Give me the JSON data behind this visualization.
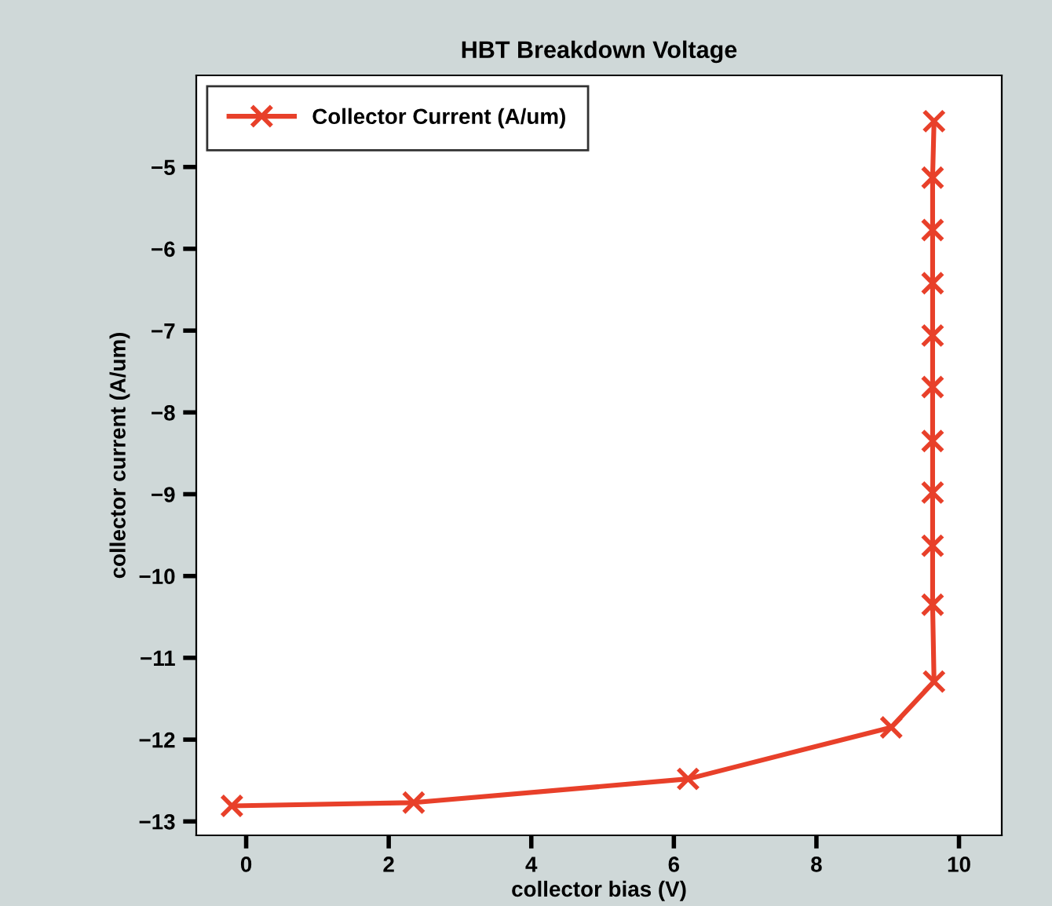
{
  "chart_data": {
    "type": "line",
    "title": "HBT Breakdown Voltage",
    "xlabel": "collector bias (V)",
    "ylabel": "collector current (A/um)",
    "x": [
      -0.2,
      2.35,
      6.2,
      9.05,
      9.65,
      9.63,
      9.63,
      9.63,
      9.63,
      9.63,
      9.63,
      9.63,
      9.63,
      9.63,
      9.65
    ],
    "series": [
      {
        "name": "Collector Current (A/um)",
        "color": "#e8402a",
        "values": [
          -12.81,
          -12.77,
          -12.48,
          -11.85,
          -11.29,
          -10.35,
          -9.63,
          -8.98,
          -8.35,
          -7.69,
          -7.06,
          -6.42,
          -5.77,
          -5.13,
          -4.44
        ]
      }
    ],
    "xlim": [
      -0.7,
      10.6
    ],
    "ylim": [
      -13.17,
      -3.88
    ],
    "xticks": [
      0,
      2,
      4,
      6,
      8,
      10
    ],
    "yticks": [
      -13,
      -12,
      -11,
      -10,
      -9,
      -8,
      -7,
      -6,
      -5
    ],
    "marker": "cross",
    "line_style": "solid",
    "legend": "top left",
    "grid": false
  }
}
